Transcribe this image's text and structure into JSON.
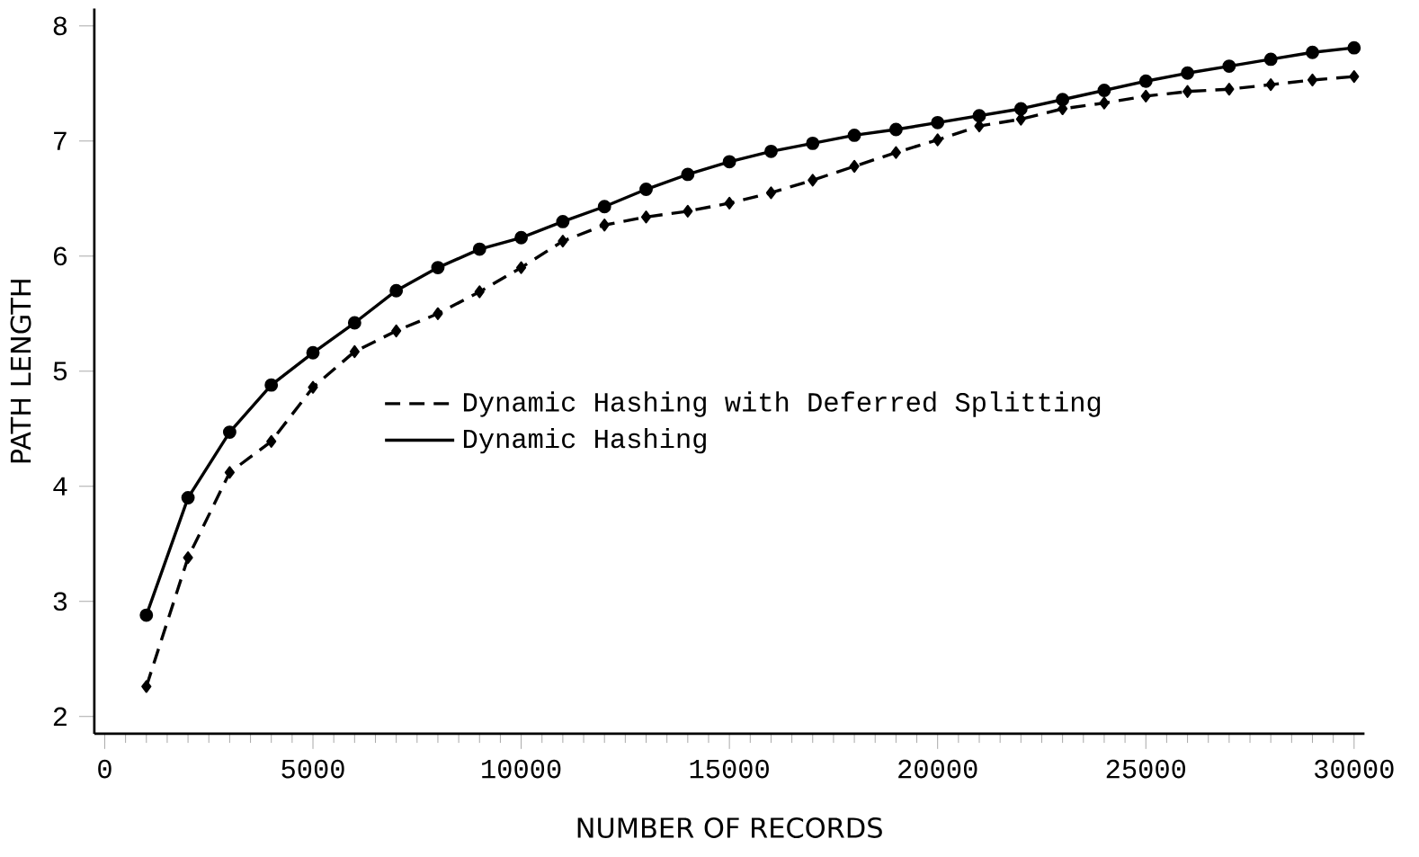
{
  "chart_data": {
    "type": "line",
    "xlabel": "NUMBER OF RECORDS",
    "ylabel": "PATH LENGTH",
    "x": [
      1000,
      2000,
      3000,
      4000,
      5000,
      6000,
      7000,
      8000,
      9000,
      10000,
      11000,
      12000,
      13000,
      14000,
      15000,
      16000,
      17000,
      18000,
      19000,
      20000,
      21000,
      22000,
      23000,
      24000,
      25000,
      26000,
      27000,
      28000,
      29000,
      30000
    ],
    "series": [
      {
        "name": "Dynamic Hashing with Deferred Splitting",
        "color": "#000000",
        "line_style": "dashed",
        "marker": "diamond",
        "values": [
          2.26,
          3.38,
          4.12,
          4.39,
          4.86,
          5.17,
          5.35,
          5.5,
          5.69,
          5.9,
          6.13,
          6.27,
          6.34,
          6.39,
          6.46,
          6.55,
          6.66,
          6.78,
          6.9,
          7.01,
          7.13,
          7.19,
          7.28,
          7.33,
          7.39,
          7.43,
          7.45,
          7.49,
          7.53,
          7.56
        ]
      },
      {
        "name": "Dynamic Hashing",
        "color": "#000000",
        "line_style": "solid",
        "marker": "circle",
        "values": [
          2.88,
          3.9,
          4.47,
          4.88,
          5.16,
          5.42,
          5.7,
          5.9,
          6.06,
          6.16,
          6.3,
          6.43,
          6.58,
          6.71,
          6.82,
          6.91,
          6.98,
          7.05,
          7.1,
          7.16,
          7.22,
          7.28,
          7.36,
          7.44,
          7.52,
          7.59,
          7.65,
          7.71,
          7.77,
          7.81
        ]
      }
    ],
    "xlim": [
      -250,
      30250
    ],
    "ylim": [
      1.85,
      8.15
    ],
    "xticks": [
      0,
      5000,
      10000,
      15000,
      20000,
      25000,
      30000
    ],
    "yticks": [
      2,
      3,
      4,
      5,
      6,
      7,
      8
    ],
    "grid": false,
    "legend": "center"
  }
}
